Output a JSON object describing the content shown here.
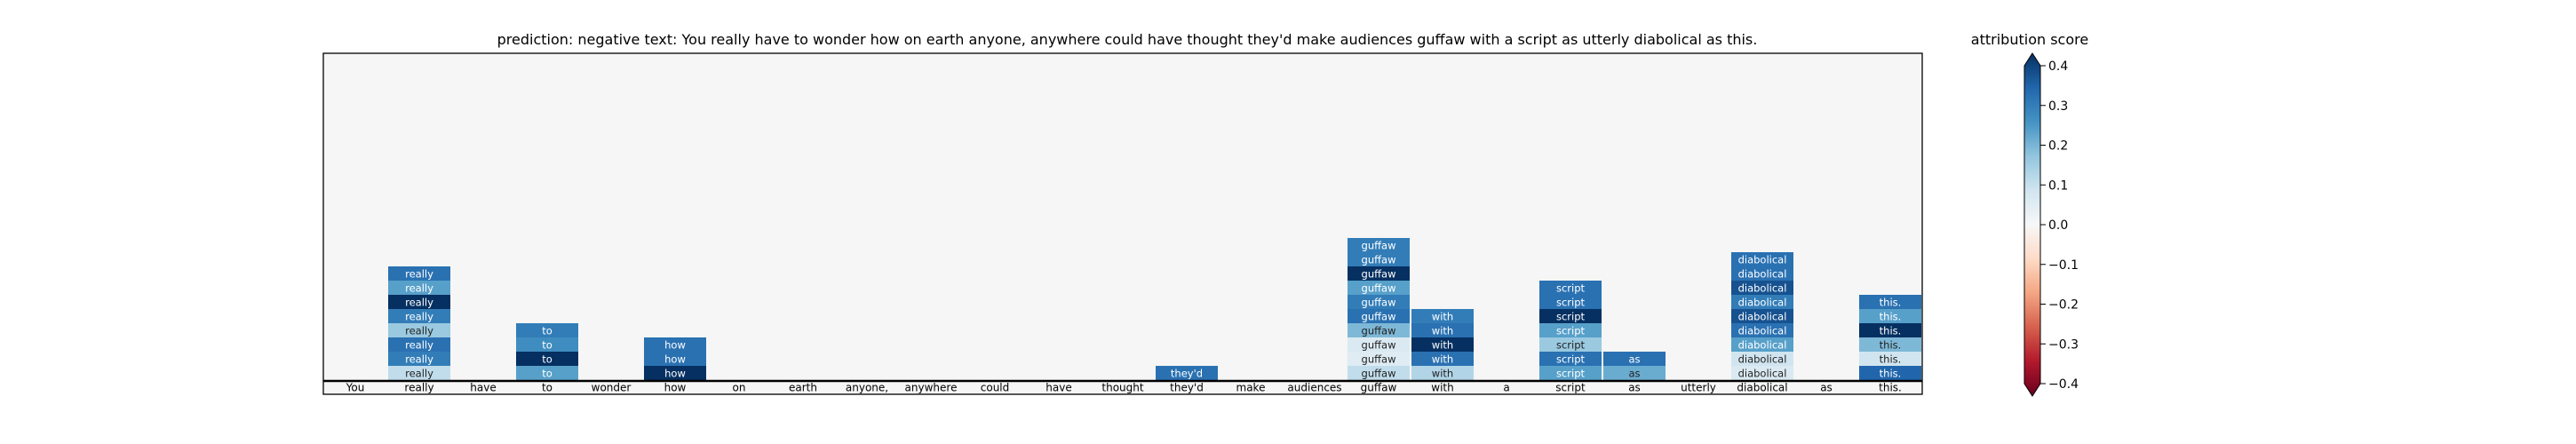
{
  "chart_data": {
    "type": "heatmap",
    "title": "prediction:  negative     text:  You really have to wonder how on earth anyone, anywhere could have thought they'd make audiences guffaw with a script as utterly diabolical as this.",
    "tokens": [
      "You",
      "really",
      "have",
      "to",
      "wonder",
      "how",
      "on",
      "earth",
      "anyone,",
      "anywhere",
      "could",
      "have",
      "thought",
      "they'd",
      "make",
      "audiences",
      "guffaw",
      "with",
      "a",
      "script",
      "as",
      "utterly",
      "diabolical",
      "as",
      "this."
    ],
    "layers": 24,
    "columns": [
      {
        "token": "really",
        "values": [
          0.3,
          0.22,
          0.42,
          0.28,
          0.15,
          0.3,
          0.28,
          0.1
        ]
      },
      {
        "token": "to",
        "values": [
          0.28,
          0.25,
          0.4,
          0.22
        ]
      },
      {
        "token": "how",
        "values": [
          0.3,
          0.3,
          0.42
        ]
      },
      {
        "token": "they'd",
        "values": [
          0.3
        ]
      },
      {
        "token": "guffaw",
        "values": [
          0.28,
          0.28,
          0.4,
          0.22,
          0.28,
          0.3,
          0.18,
          0.06,
          0.05,
          0.1
        ]
      },
      {
        "token": "with",
        "values": [
          0.28,
          0.3,
          0.4,
          0.3,
          0.12
        ]
      },
      {
        "token": "script",
        "values": [
          0.3,
          0.3,
          0.42,
          0.22,
          0.15,
          0.3,
          0.22
        ]
      },
      {
        "token": "diabolical",
        "values": [
          0.3,
          0.3,
          0.35,
          0.28,
          0.35,
          0.3,
          0.22,
          0.08,
          0.06
        ]
      },
      {
        "token": "as",
        "values": [
          0.3,
          0.2
        ]
      },
      {
        "token": "this.",
        "values": [
          0.3,
          0.22,
          0.42,
          0.18,
          0.08,
          0.32
        ]
      }
    ],
    "colorbar": {
      "label": "attribution score",
      "range": [
        -0.4,
        0.4
      ],
      "ticks": [
        0.4,
        0.3,
        0.2,
        0.1,
        0.0,
        -0.1,
        -0.2,
        -0.3,
        -0.4
      ],
      "tick_labels": [
        "0.4",
        "0.3",
        "0.2",
        "0.1",
        "0.0",
        "−0.1",
        "−0.2",
        "−0.3",
        "−0.4"
      ],
      "colormap": "RdBu"
    },
    "background_color": "#f5f6f5"
  }
}
